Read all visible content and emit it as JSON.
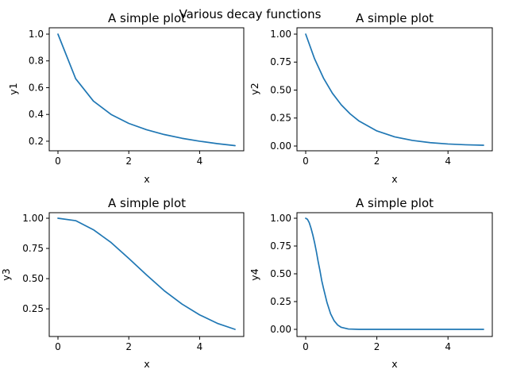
{
  "suptitle": "Various decay functions",
  "colors": {
    "line": "#1f77b4",
    "axes": "#000000",
    "background": "#ffffff"
  },
  "chart_data": [
    {
      "type": "line",
      "title": "A simple plot",
      "xlabel": "x",
      "ylabel": "y1",
      "xlim": [
        0,
        5
      ],
      "ylim": [
        0.17,
        1.0
      ],
      "xticks": [
        0,
        2,
        4
      ],
      "xtick_labels": [
        "0",
        "2",
        "4"
      ],
      "yticks": [
        0.2,
        0.4,
        0.6,
        0.8,
        1.0
      ],
      "ytick_labels": [
        "0.2",
        "0.4",
        "0.6",
        "0.8",
        "1.0"
      ],
      "grid": false,
      "series": [
        {
          "x": [
            0,
            0.5,
            1,
            1.5,
            2,
            2.5,
            3,
            3.5,
            4,
            4.5,
            5
          ],
          "y": [
            1.0,
            0.667,
            0.5,
            0.4,
            0.333,
            0.286,
            0.25,
            0.222,
            0.2,
            0.182,
            0.167
          ]
        }
      ]
    },
    {
      "type": "line",
      "title": "A simple plot",
      "xlabel": "x",
      "ylabel": "y2",
      "xlim": [
        0,
        5
      ],
      "ylim": [
        0.007,
        1.0
      ],
      "xticks": [
        0,
        2,
        4
      ],
      "xtick_labels": [
        "0",
        "2",
        "4"
      ],
      "yticks": [
        0.0,
        0.25,
        0.5,
        0.75,
        1.0
      ],
      "ytick_labels": [
        "0.00",
        "0.25",
        "0.50",
        "0.75",
        "1.00"
      ],
      "grid": false,
      "series": [
        {
          "x": [
            0,
            0.25,
            0.5,
            0.75,
            1,
            1.25,
            1.5,
            2,
            2.5,
            3,
            3.5,
            4,
            4.5,
            5
          ],
          "y": [
            1.0,
            0.779,
            0.607,
            0.472,
            0.368,
            0.287,
            0.223,
            0.135,
            0.082,
            0.05,
            0.03,
            0.018,
            0.011,
            0.007
          ]
        }
      ]
    },
    {
      "type": "line",
      "title": "A simple plot",
      "xlabel": "x",
      "ylabel": "y3",
      "xlim": [
        0,
        5
      ],
      "ylim": [
        0.08,
        1.0
      ],
      "xticks": [
        0,
        2,
        4
      ],
      "xtick_labels": [
        "0",
        "2",
        "4"
      ],
      "yticks": [
        0.25,
        0.5,
        0.75,
        1.0
      ],
      "ytick_labels": [
        "0.25",
        "0.50",
        "0.75",
        "1.00"
      ],
      "grid": false,
      "series": [
        {
          "x": [
            0,
            0.5,
            1,
            1.5,
            2,
            2.5,
            3,
            3.5,
            4,
            4.5,
            5
          ],
          "y": [
            1.0,
            0.98,
            0.905,
            0.799,
            0.667,
            0.531,
            0.4,
            0.29,
            0.2,
            0.13,
            0.08
          ]
        }
      ]
    },
    {
      "type": "line",
      "title": "A simple plot",
      "xlabel": "x",
      "ylabel": "y4",
      "xlim": [
        0,
        5
      ],
      "ylim": [
        0.0,
        1.0
      ],
      "xticks": [
        0,
        2,
        4
      ],
      "xtick_labels": [
        "0",
        "2",
        "4"
      ],
      "yticks": [
        0.0,
        0.25,
        0.5,
        0.75,
        1.0
      ],
      "ytick_labels": [
        "0.00",
        "0.25",
        "0.50",
        "0.75",
        "1.00"
      ],
      "grid": false,
      "series": [
        {
          "x": [
            0,
            0.05,
            0.1,
            0.15,
            0.2,
            0.25,
            0.3,
            0.35,
            0.4,
            0.45,
            0.5,
            0.6,
            0.7,
            0.8,
            0.9,
            1.0,
            1.2,
            1.5,
            2,
            3,
            4,
            5
          ],
          "y": [
            1.0,
            0.99,
            0.96,
            0.91,
            0.85,
            0.78,
            0.7,
            0.61,
            0.53,
            0.44,
            0.37,
            0.24,
            0.14,
            0.077,
            0.039,
            0.018,
            0.003,
            0.0,
            0.0,
            0.0,
            0.0,
            0.0
          ]
        }
      ]
    }
  ]
}
